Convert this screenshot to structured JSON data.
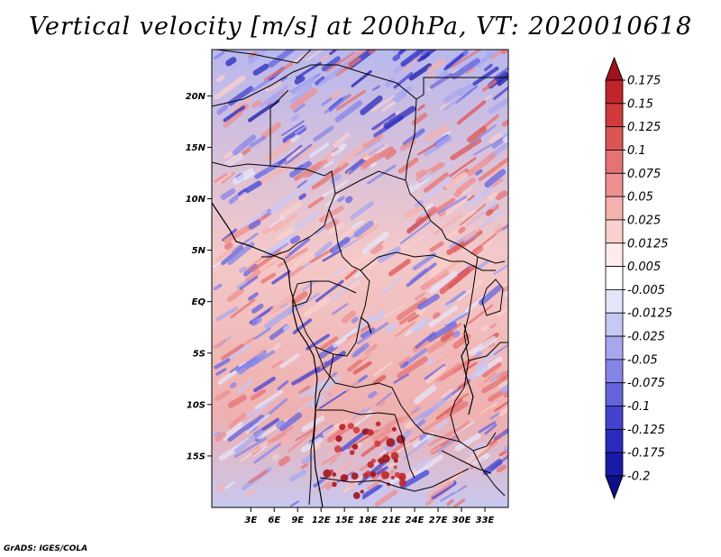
{
  "title": "Vertical velocity [m/s] at 200hPa, VT: 2020010618",
  "footer": "GrADS: IGES/COLA",
  "map": {
    "lon_range": [
      -2,
      36
    ],
    "lat_range": [
      -20,
      24.5
    ],
    "lat_labels": [
      "20N",
      "15N",
      "10N",
      "5N",
      "EQ",
      "5S",
      "10S",
      "15S"
    ],
    "lat_values": [
      20,
      15,
      10,
      5,
      0,
      -5,
      -10,
      -15
    ],
    "lon_labels": [
      "3E",
      "6E",
      "9E",
      "12E",
      "15E",
      "18E",
      "21E",
      "24E",
      "27E",
      "30E",
      "33E"
    ],
    "lon_values": [
      3,
      6,
      9,
      12,
      15,
      18,
      21,
      24,
      27,
      30,
      33
    ]
  },
  "colorbar": {
    "labels": [
      "0.175",
      "0.15",
      "0.125",
      "0.1",
      "0.075",
      "0.05",
      "0.025",
      "0.0125",
      "0.005",
      "-0.005",
      "-0.0125",
      "-0.025",
      "-0.05",
      "-0.075",
      "-0.1",
      "-0.125",
      "-0.175",
      "-0.2"
    ],
    "colors": [
      "#a0141e",
      "#c0252a",
      "#d03a3a",
      "#dc5555",
      "#e57373",
      "#ee9090",
      "#f5b1ae",
      "#fad0cc",
      "#fdeceb",
      "#ffffff",
      "#e6e6fa",
      "#c8c8f5",
      "#a7a7f0",
      "#8585e8",
      "#6464dd",
      "#4343d0",
      "#2b2bbd",
      "#1a1aa8",
      "#0f0f8c"
    ]
  }
}
